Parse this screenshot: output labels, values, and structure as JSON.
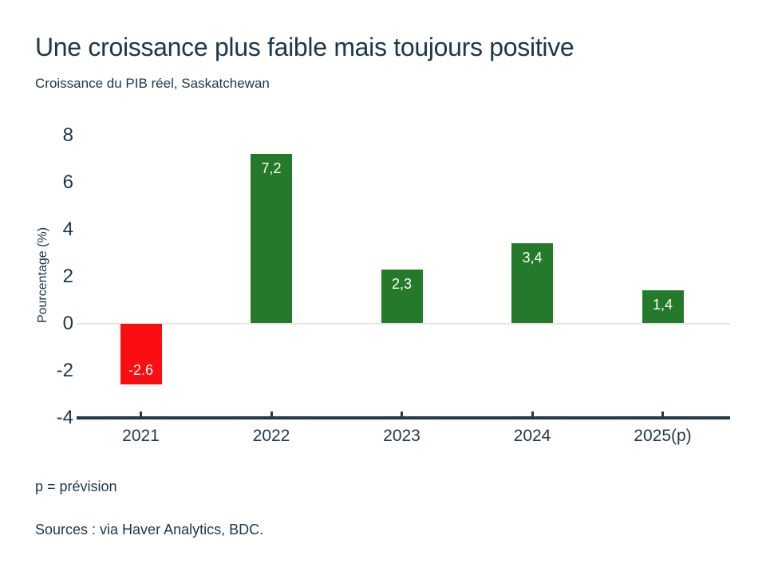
{
  "header": {
    "title": "Une croissance plus faible mais toujours positive",
    "subtitle": "Croissance du PIB réel, Saskatchewan"
  },
  "footer": {
    "footnote": "p = prévision",
    "sources": "Sources : via Haver Analytics, BDC."
  },
  "colors": {
    "positive_bar": "#247a2a",
    "negative_bar": "#fb0e12",
    "axis": "#243847",
    "text": "#1d3648",
    "zero_line": "#e8e6e1",
    "bar_label": "#ffffff"
  },
  "chart_data": {
    "type": "bar",
    "categories": [
      "2021",
      "2022",
      "2023",
      "2024",
      "2025(p)"
    ],
    "values": [
      -2.6,
      7.2,
      2.3,
      3.4,
      1.4
    ],
    "bar_labels": [
      "-2.6",
      "7,2",
      "2,3",
      "3,4",
      "1,4"
    ],
    "title": "Une croissance plus faible mais toujours positive",
    "subtitle": "Croissance du PIB réel, Saskatchewan",
    "xlabel": "",
    "ylabel": "Pourcentage (%)",
    "ylim": [
      -4,
      8
    ],
    "yticks": [
      8,
      6,
      4,
      2,
      0,
      -2,
      -4
    ],
    "grid": false,
    "legend": "none",
    "annotations": [
      "p = prévision",
      "Sources : via Haver Analytics, BDC."
    ]
  }
}
